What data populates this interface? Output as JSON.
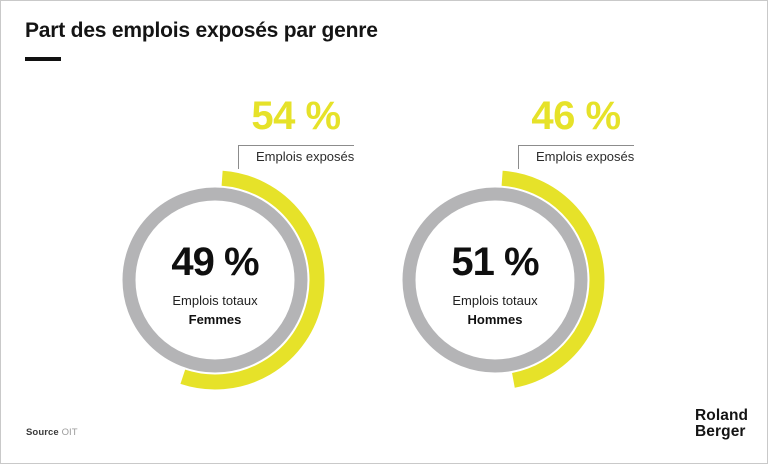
{
  "header": {
    "title": "Part des emplois exposés par genre"
  },
  "footer": {
    "source_label": "Source",
    "source_value": "OIT",
    "logo_line1": "Roland",
    "logo_line2": "Berger"
  },
  "colors": {
    "accent_yellow": "#E6E229",
    "ring_gray": "#B4B4B6",
    "text_dark": "#161616"
  },
  "chart_data": {
    "type": "donut-pair",
    "title": "Part des emplois exposés par genre",
    "source": "OIT",
    "unit": "%",
    "legend_position": "callout-top",
    "charts": [
      {
        "group": "Femmes",
        "exposed_pct": 54,
        "exposed_display": "54 %",
        "exposed_label": "Emplois exposés",
        "total_share_pct": 49,
        "total_display": "49 %",
        "total_label": "Emplois totaux"
      },
      {
        "group": "Hommes",
        "exposed_pct": 46,
        "exposed_display": "46 %",
        "exposed_label": "Emplois exposés",
        "total_share_pct": 51,
        "total_display": "51 %",
        "total_label": "Emplois totaux"
      }
    ]
  }
}
